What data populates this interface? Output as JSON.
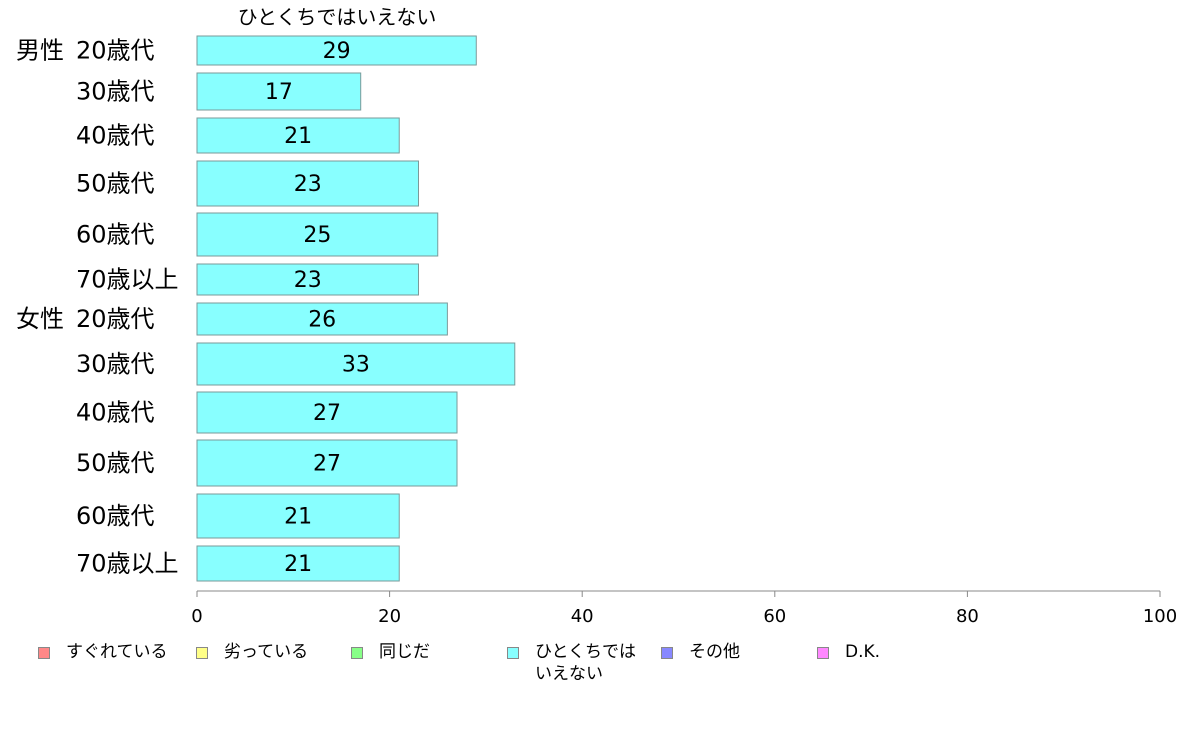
{
  "chart_data": {
    "type": "bar",
    "orientation": "horizontal",
    "series_title": "ひとくちではいえない",
    "groups": [
      {
        "label": "男性",
        "start_index": 0
      },
      {
        "label": "女性",
        "start_index": 6
      }
    ],
    "categories": [
      "20歳代",
      "30歳代",
      "40歳代",
      "50歳代",
      "60歳代",
      "70歳以上",
      "20歳代",
      "30歳代",
      "40歳代",
      "50歳代",
      "60歳代",
      "70歳以上"
    ],
    "values": [
      29,
      17,
      21,
      23,
      25,
      23,
      26,
      33,
      27,
      27,
      21,
      21
    ],
    "xlim": [
      0,
      100
    ],
    "xticks": [
      0,
      20,
      40,
      60,
      80,
      100
    ],
    "grid": false,
    "bar_color": "#88ffff",
    "legend": {
      "placement": "bottom",
      "items": [
        {
          "label": "すぐれている",
          "color": "#ff8888"
        },
        {
          "label": "劣っている",
          "color": "#ffff88"
        },
        {
          "label": "同じだ",
          "color": "#88ff88"
        },
        {
          "label": "ひとくちでは\nいえない",
          "color": "#88ffff"
        },
        {
          "label": "その他",
          "color": "#8888ff"
        },
        {
          "label": "D.K.",
          "color": "#ff88ff"
        }
      ]
    }
  }
}
